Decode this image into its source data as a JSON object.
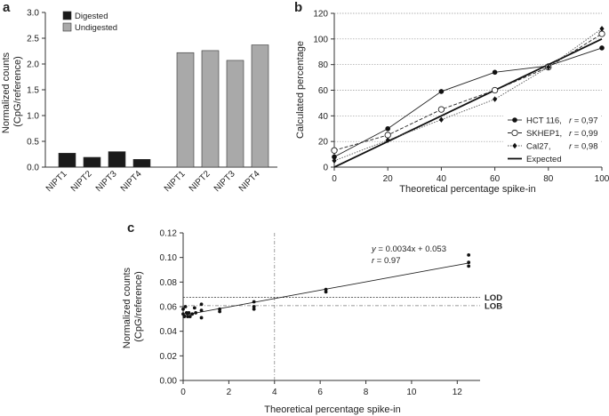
{
  "chart_data": [
    {
      "panel": "a",
      "type": "bar",
      "ylabel": "Normalized counts (CpG/reference)",
      "ylim": [
        0,
        3.0
      ],
      "yticks": [
        "0.0",
        "0.5",
        "1.0",
        "1.5",
        "2.0",
        "2.5",
        "3.0"
      ],
      "legend": [
        "Digested",
        "Undigested"
      ],
      "series": [
        {
          "name": "Digested",
          "color": "#1a1a1a",
          "categories": [
            "NIPT1",
            "NIPT2",
            "NIPT3",
            "NIPT4"
          ],
          "values": [
            0.27,
            0.19,
            0.3,
            0.15
          ]
        },
        {
          "name": "Undigested",
          "color": "#a9a9a9",
          "categories": [
            "NIPT1",
            "NIPT2",
            "NIPT3",
            "NIPT4"
          ],
          "values": [
            2.22,
            2.26,
            2.07,
            2.37
          ]
        }
      ]
    },
    {
      "panel": "b",
      "type": "line",
      "xlabel": "Theoretical percentage spike-in",
      "ylabel": "Calculated percentage",
      "xlim": [
        0,
        100
      ],
      "ylim": [
        0,
        120
      ],
      "xticks": [
        "0",
        "20",
        "40",
        "60",
        "80",
        "100"
      ],
      "yticks": [
        "0",
        "20",
        "40",
        "60",
        "80",
        "100",
        "120"
      ],
      "grid": true,
      "series": [
        {
          "name": "HCT 116,",
          "r": "r = 0,97",
          "marker": "filled-circle",
          "x": [
            0,
            20,
            40,
            60,
            80,
            100
          ],
          "y": [
            8,
            30,
            59,
            74,
            79,
            93
          ]
        },
        {
          "name": "SKHEP1,",
          "r": "r = 0,99",
          "marker": "open-circle",
          "x": [
            0,
            20,
            40,
            60,
            80,
            100
          ],
          "y": [
            13,
            25,
            45,
            60,
            78,
            104
          ]
        },
        {
          "name": "Cal27,",
          "r": "r = 0,98",
          "marker": "diamond",
          "x": [
            0,
            20,
            40,
            60,
            80,
            100
          ],
          "y": [
            5,
            21,
            37,
            53,
            78,
            108
          ]
        },
        {
          "name": "Expected",
          "r": "",
          "marker": "none",
          "x": [
            0,
            100
          ],
          "y": [
            0,
            100
          ]
        }
      ]
    },
    {
      "panel": "c",
      "type": "scatter",
      "xlabel": "Theoretical percentage spike-in",
      "ylabel": "Normalized counts (CpG/reference)",
      "xlim": [
        0,
        13
      ],
      "ylim": [
        0,
        0.12
      ],
      "xticks": [
        "0",
        "2",
        "4",
        "6",
        "8",
        "10",
        "12"
      ],
      "yticks": [
        "0.00",
        "0.02",
        "0.04",
        "0.06",
        "0.08",
        "0.10",
        "0.12"
      ],
      "points": [
        [
          0,
          0.054
        ],
        [
          0,
          0.058
        ],
        [
          0.05,
          0.052
        ],
        [
          0.1,
          0.06
        ],
        [
          0.15,
          0.055
        ],
        [
          0.2,
          0.052
        ],
        [
          0.25,
          0.055
        ],
        [
          0.3,
          0.052
        ],
        [
          0.4,
          0.054
        ],
        [
          0.5,
          0.059
        ],
        [
          0.55,
          0.055
        ],
        [
          0.8,
          0.062
        ],
        [
          0.8,
          0.057
        ],
        [
          0.8,
          0.051
        ],
        [
          1.6,
          0.058
        ],
        [
          1.6,
          0.056
        ],
        [
          3.1,
          0.064
        ],
        [
          3.1,
          0.06
        ],
        [
          3.1,
          0.058
        ],
        [
          6.25,
          0.074
        ],
        [
          6.25,
          0.072
        ],
        [
          12.5,
          0.102
        ],
        [
          12.5,
          0.096
        ],
        [
          12.5,
          0.093
        ]
      ],
      "fit": {
        "slope": 0.0034,
        "intercept": 0.053,
        "equation": "y = 0.0034x + 0.053",
        "r_text": "r = 0.97"
      },
      "lod": {
        "label": "LOD",
        "value": 0.0675
      },
      "lob": {
        "label": "LOB",
        "value": 0.0608
      },
      "vline_x": 4.0
    }
  ],
  "labels": {
    "a": "a",
    "b": "b",
    "c": "c"
  }
}
